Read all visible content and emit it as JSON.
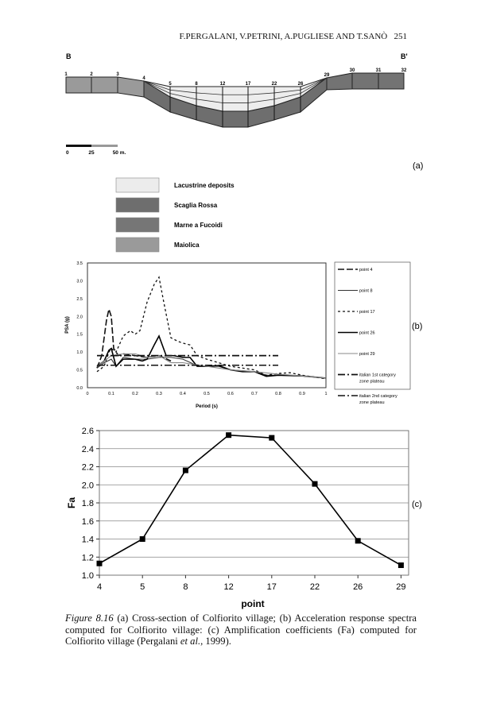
{
  "header": {
    "running_head": "F.PERGALANI, V.PETRINI, A.PUGLIESE AND T.SANÒ",
    "page_number": "251"
  },
  "figure_a": {
    "left_label": "B",
    "right_label": "B'",
    "points": [
      "1",
      "2",
      "3",
      "4",
      "5",
      "8",
      "12",
      "17",
      "22",
      "26",
      "29",
      "30",
      "31",
      "32"
    ],
    "scale": [
      "0",
      "25",
      "50 m."
    ],
    "panel_label": "(a)",
    "legend": [
      {
        "label": "Lacustrine deposits",
        "color": "#ececec"
      },
      {
        "label": "Scaglia Rossa",
        "color": "#6e6e6e"
      },
      {
        "label": "Marne a Fucoidi",
        "color": "#767676"
      },
      {
        "label": "Maiolica",
        "color": "#9a9a9a"
      }
    ]
  },
  "chart_data": [
    {
      "type": "line",
      "panel_label": "(b)",
      "xlabel": "Period (s)",
      "ylabel": "PSA (g)",
      "xlim": [
        0,
        1
      ],
      "ylim": [
        0,
        3.5
      ],
      "xticks": [
        "0",
        "0.1",
        "0.2",
        "0.3",
        "0.4",
        "0.5",
        "0.6",
        "0.7",
        "0.8",
        "0.9",
        "1"
      ],
      "yticks": [
        "0.0",
        "0.5",
        "1.0",
        "1.5",
        "2.0",
        "2.5",
        "3.0",
        "3.5"
      ],
      "legend_position": "right",
      "series": [
        {
          "name": "point 4",
          "style": "longdash",
          "x": [
            0.04,
            0.06,
            0.08,
            0.09,
            0.1,
            0.11,
            0.13,
            0.15,
            0.2,
            0.25,
            0.3,
            0.35
          ],
          "y": [
            0.55,
            0.9,
            1.9,
            2.2,
            2.0,
            1.1,
            0.9,
            0.95,
            0.9,
            0.85,
            0.9,
            0.75
          ]
        },
        {
          "name": "point 8",
          "style": "solid",
          "x": [
            0.04,
            0.07,
            0.1,
            0.12,
            0.15,
            0.2,
            0.25,
            0.3,
            0.35,
            0.4,
            0.45,
            0.5,
            0.55,
            0.6,
            0.7,
            0.75,
            0.8,
            0.9,
            1.0
          ],
          "y": [
            0.55,
            0.7,
            0.8,
            0.6,
            0.85,
            0.8,
            0.8,
            0.85,
            0.85,
            0.8,
            0.65,
            0.6,
            0.6,
            0.5,
            0.45,
            0.35,
            0.35,
            0.33,
            0.27
          ]
        },
        {
          "name": "point 17",
          "style": "shortdash",
          "x": [
            0.04,
            0.07,
            0.09,
            0.1,
            0.12,
            0.15,
            0.18,
            0.2,
            0.22,
            0.25,
            0.28,
            0.3,
            0.32,
            0.35,
            0.38,
            0.4,
            0.43,
            0.46,
            0.5,
            0.55,
            0.6,
            0.7,
            0.75,
            0.8,
            0.85,
            0.9,
            1.0
          ],
          "y": [
            0.45,
            0.6,
            1.0,
            1.1,
            1.0,
            1.45,
            1.6,
            1.5,
            1.6,
            2.4,
            2.9,
            3.1,
            2.4,
            1.4,
            1.3,
            1.25,
            1.2,
            0.9,
            0.8,
            0.7,
            0.6,
            0.5,
            0.35,
            0.4,
            0.42,
            0.35,
            0.25
          ]
        },
        {
          "name": "point 26",
          "style": "solid-bold",
          "x": [
            0.04,
            0.07,
            0.09,
            0.1,
            0.12,
            0.15,
            0.2,
            0.23,
            0.25,
            0.28,
            0.3,
            0.33,
            0.36,
            0.4,
            0.43,
            0.46,
            0.5,
            0.55,
            0.6,
            0.65,
            0.7,
            0.75,
            0.8,
            0.9,
            1.0
          ],
          "y": [
            0.6,
            0.75,
            1.05,
            1.1,
            0.6,
            0.8,
            0.8,
            0.75,
            0.8,
            1.2,
            1.45,
            0.9,
            0.9,
            0.85,
            0.85,
            0.6,
            0.6,
            0.62,
            0.5,
            0.45,
            0.45,
            0.32,
            0.35,
            0.33,
            0.27
          ]
        },
        {
          "name": "point 29",
          "style": "solid-gray",
          "x": [
            0.04,
            0.08,
            0.1,
            0.15,
            0.2,
            0.25,
            0.3,
            0.35,
            0.4,
            0.5,
            0.6,
            0.7,
            0.8,
            0.9,
            1.0
          ],
          "y": [
            0.6,
            0.8,
            0.9,
            0.95,
            0.95,
            0.85,
            0.9,
            0.7,
            0.7,
            0.6,
            0.5,
            0.45,
            0.38,
            0.33,
            0.27
          ]
        },
        {
          "name": "italian 1st category zone plateau",
          "style": "dashdot",
          "x": [
            0.04,
            0.8
          ],
          "y": [
            0.9,
            0.9
          ]
        },
        {
          "name": "italian 2nd category zone plateau",
          "style": "dashdot2",
          "x": [
            0.04,
            0.8
          ],
          "y": [
            0.63,
            0.63
          ]
        }
      ]
    },
    {
      "type": "line",
      "panel_label": "(c)",
      "xlabel": "point",
      "ylabel": "Fa",
      "ylim": [
        1.0,
        2.6
      ],
      "yticks": [
        "1.0",
        "1.2",
        "1.4",
        "1.6",
        "1.8",
        "2.0",
        "2.2",
        "2.4",
        "2.6"
      ],
      "categories": [
        "4",
        "5",
        "8",
        "12",
        "17",
        "22",
        "26",
        "29"
      ],
      "values": [
        1.13,
        1.4,
        2.16,
        2.55,
        2.52,
        2.01,
        1.38,
        1.11
      ],
      "grid": true
    }
  ],
  "caption": {
    "figure_label": "Figure 8.16",
    "text_1": " (a) Cross-section of Colfiorito village; (b) Acceleration response spectra computed for Colfiorito village: (c) Amplification coefficients (Fa) computed for Colfiorito village (Pergalani ",
    "etal": "et al.",
    "text_2": ", 1999)."
  }
}
